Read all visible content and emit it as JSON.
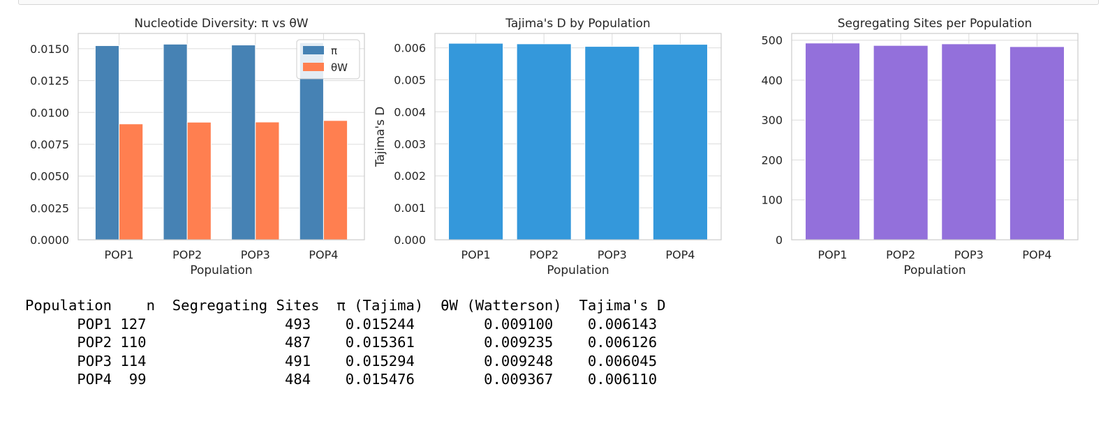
{
  "chart_data": [
    {
      "type": "bar",
      "title": "Nucleotide Diversity: π vs θW",
      "xlabel": "Population",
      "ylabel": "",
      "categories": [
        "POP1",
        "POP2",
        "POP3",
        "POP4"
      ],
      "series": [
        {
          "name": "π",
          "values": [
            0.015244,
            0.015361,
            0.015294,
            0.015476
          ],
          "color": "#4682b4"
        },
        {
          "name": "θW",
          "values": [
            0.0091,
            0.009235,
            0.009248,
            0.009367
          ],
          "color": "#ff7f50"
        }
      ],
      "ylim": [
        0,
        0.0162
      ],
      "yticks": [
        "0.0000",
        "0.0025",
        "0.0050",
        "0.0075",
        "0.0100",
        "0.0125",
        "0.0150"
      ],
      "legend": "top-right",
      "grid": true
    },
    {
      "type": "bar",
      "title": "Tajima's D by Population",
      "xlabel": "Population",
      "ylabel": "Tajima's D",
      "categories": [
        "POP1",
        "POP2",
        "POP3",
        "POP4"
      ],
      "series": [
        {
          "values": [
            0.006143,
            0.006126,
            0.006045,
            0.00611
          ],
          "color": "#3498db"
        }
      ],
      "ylim": [
        0,
        0.00645
      ],
      "yticks": [
        "0.000",
        "0.001",
        "0.002",
        "0.003",
        "0.004",
        "0.005",
        "0.006"
      ],
      "grid": true
    },
    {
      "type": "bar",
      "title": "Segregating Sites per Population",
      "xlabel": "Population",
      "ylabel": "",
      "categories": [
        "POP1",
        "POP2",
        "POP3",
        "POP4"
      ],
      "series": [
        {
          "values": [
            493,
            487,
            491,
            484
          ],
          "color": "#9370db"
        }
      ],
      "ylim": [
        0,
        517
      ],
      "yticks": [
        "0",
        "100",
        "200",
        "300",
        "400",
        "500"
      ],
      "grid": true
    }
  ],
  "table": {
    "headers": [
      "Population",
      "n",
      "Segregating Sites",
      "π (Tajima)",
      "θW (Watterson)",
      "Tajima's D"
    ],
    "rows": [
      [
        "POP1",
        "127",
        "493",
        "0.015244",
        "0.009100",
        "0.006143"
      ],
      [
        "POP2",
        "110",
        "487",
        "0.015361",
        "0.009235",
        "0.006126"
      ],
      [
        "POP3",
        "114",
        "491",
        "0.015294",
        "0.009248",
        "0.006045"
      ],
      [
        "POP4",
        "99",
        "484",
        "0.015476",
        "0.009367",
        "0.006110"
      ]
    ]
  }
}
